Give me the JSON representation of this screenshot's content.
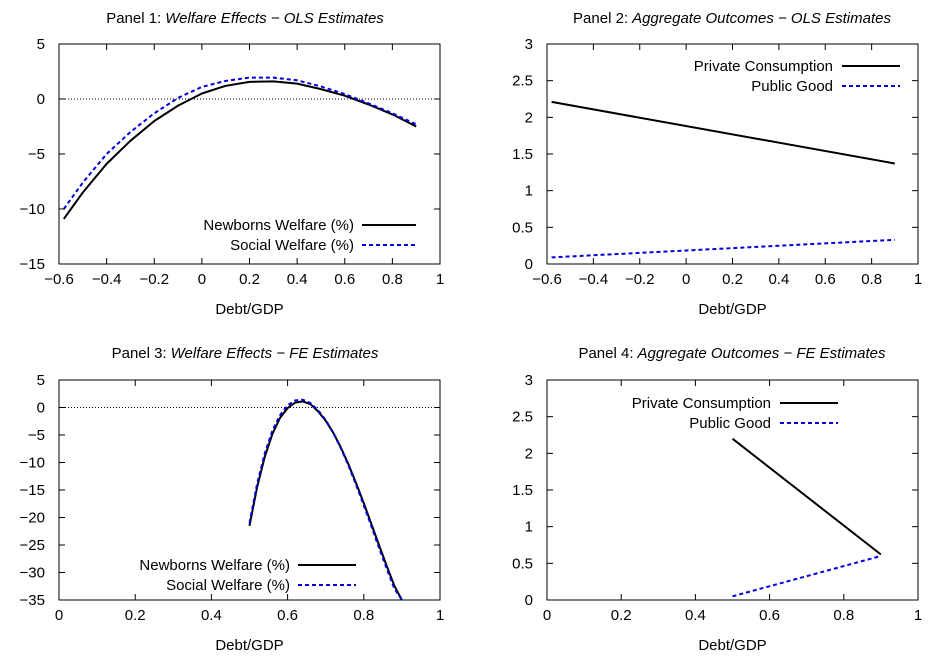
{
  "colors": {
    "series1": "#000000",
    "series2": "#0000dd"
  },
  "chart_data": [
    {
      "type": "line",
      "title_prefix": "Panel 1:",
      "title_italic": "Welfare Effects − OLS Estimates",
      "xlabel": "Debt/GDP",
      "xlim": [
        -0.6,
        1
      ],
      "ylim": [
        -15,
        5
      ],
      "xticks": [
        -0.6,
        -0.4,
        -0.2,
        0,
        0.2,
        0.4,
        0.6,
        0.8,
        1
      ],
      "xtick_labels": [
        "−0.6",
        "−0.4",
        "−0.2",
        "0",
        "0.2",
        "0.4",
        "0.6",
        "0.8",
        "1"
      ],
      "yticks": [
        -15,
        -10,
        -5,
        0,
        5
      ],
      "ytick_labels": [
        "−15",
        "−10",
        "−5",
        "0",
        "5"
      ],
      "zero_line": true,
      "legend": "bottom-right",
      "series": [
        {
          "name": "Newborns Welfare (%)",
          "style": "solid",
          "x": [
            -0.58,
            -0.5,
            -0.4,
            -0.3,
            -0.2,
            -0.1,
            0,
            0.1,
            0.2,
            0.3,
            0.4,
            0.5,
            0.6,
            0.7,
            0.8,
            0.9
          ],
          "y": [
            -10.9,
            -8.5,
            -5.9,
            -3.8,
            -2.0,
            -0.6,
            0.5,
            1.2,
            1.55,
            1.6,
            1.4,
            0.9,
            0.3,
            -0.5,
            -1.4,
            -2.5
          ]
        },
        {
          "name": "Social Welfare (%)",
          "style": "dashed",
          "x": [
            -0.58,
            -0.5,
            -0.4,
            -0.3,
            -0.2,
            -0.1,
            0,
            0.1,
            0.2,
            0.3,
            0.4,
            0.5,
            0.6,
            0.7,
            0.8,
            0.9
          ],
          "y": [
            -10.0,
            -7.6,
            -5.0,
            -3.0,
            -1.3,
            0.1,
            1.1,
            1.65,
            1.95,
            1.95,
            1.7,
            1.15,
            0.45,
            -0.4,
            -1.3,
            -2.3
          ]
        }
      ]
    },
    {
      "type": "line",
      "title_prefix": "Panel 2:",
      "title_italic": "Aggregate Outcomes − OLS Estimates",
      "xlabel": "Debt/GDP",
      "xlim": [
        -0.6,
        1
      ],
      "ylim": [
        0,
        3
      ],
      "xticks": [
        -0.6,
        -0.4,
        -0.2,
        0,
        0.2,
        0.4,
        0.6,
        0.8,
        1
      ],
      "xtick_labels": [
        "−0.6",
        "−0.4",
        "−0.2",
        "0",
        "0.2",
        "0.4",
        "0.6",
        "0.8",
        "1"
      ],
      "yticks": [
        0,
        0.5,
        1,
        1.5,
        2,
        2.5,
        3
      ],
      "ytick_labels": [
        "0",
        "0.5",
        "1",
        "1.5",
        "2",
        "2.5",
        "3"
      ],
      "zero_line": false,
      "legend": "top-right",
      "series": [
        {
          "name": "Private Consumption",
          "style": "solid",
          "x": [
            -0.58,
            0.9
          ],
          "y": [
            2.21,
            1.37
          ]
        },
        {
          "name": "Public Good",
          "style": "dashed",
          "x": [
            -0.58,
            0.9
          ],
          "y": [
            0.09,
            0.33
          ]
        }
      ]
    },
    {
      "type": "line",
      "title_prefix": "Panel 3:",
      "title_italic": "Welfare Effects − FE Estimates",
      "xlabel": "Debt/GDP",
      "xlim": [
        0,
        1
      ],
      "ylim": [
        -35,
        5
      ],
      "xticks": [
        0,
        0.2,
        0.4,
        0.6,
        0.8,
        1
      ],
      "xtick_labels": [
        "0",
        "0.2",
        "0.4",
        "0.6",
        "0.8",
        "1"
      ],
      "yticks": [
        -35,
        -30,
        -25,
        -20,
        -15,
        -10,
        -5,
        0,
        5
      ],
      "ytick_labels": [
        "−35",
        "−30",
        "−25",
        "−20",
        "−15",
        "−10",
        "−5",
        "0",
        "5"
      ],
      "zero_line": true,
      "legend": "bottom-right",
      "series": [
        {
          "name": "Newborns Welfare (%)",
          "style": "solid",
          "x": [
            0.5,
            0.52,
            0.54,
            0.56,
            0.58,
            0.6,
            0.62,
            0.64,
            0.66,
            0.68,
            0.7,
            0.72,
            0.74,
            0.76,
            0.78,
            0.8,
            0.82,
            0.84,
            0.86,
            0.88,
            0.9
          ],
          "y": [
            -21.5,
            -14.5,
            -9.0,
            -4.8,
            -1.9,
            -0.1,
            0.9,
            1.1,
            0.6,
            -0.7,
            -2.4,
            -4.6,
            -7.3,
            -10.4,
            -13.8,
            -17.4,
            -21.2,
            -25.0,
            -28.8,
            -32.4,
            -35.0
          ]
        },
        {
          "name": "Social Welfare (%)",
          "style": "dashed",
          "x": [
            0.5,
            0.52,
            0.54,
            0.56,
            0.58,
            0.6,
            0.62,
            0.64,
            0.66,
            0.68,
            0.7,
            0.72,
            0.74,
            0.76,
            0.78,
            0.8,
            0.82,
            0.84,
            0.86,
            0.88,
            0.9
          ],
          "y": [
            -21.0,
            -13.9,
            -8.4,
            -4.2,
            -1.4,
            0.4,
            1.3,
            1.4,
            0.8,
            -0.5,
            -2.3,
            -4.6,
            -7.4,
            -10.6,
            -14.1,
            -17.8,
            -21.6,
            -25.5,
            -29.3,
            -32.9,
            -35.0
          ]
        }
      ]
    },
    {
      "type": "line",
      "title_prefix": "Panel 4:",
      "title_italic": "Aggregate Outcomes − FE Estimates",
      "xlabel": "Debt/GDP",
      "xlim": [
        0,
        1
      ],
      "ylim": [
        0,
        3
      ],
      "xticks": [
        0,
        0.2,
        0.4,
        0.6,
        0.8,
        1
      ],
      "xtick_labels": [
        "0",
        "0.2",
        "0.4",
        "0.6",
        "0.8",
        "1"
      ],
      "yticks": [
        0,
        0.5,
        1,
        1.5,
        2,
        2.5,
        3
      ],
      "ytick_labels": [
        "0",
        "0.5",
        "1",
        "1.5",
        "2",
        "2.5",
        "3"
      ],
      "zero_line": false,
      "legend": "top-right",
      "series": [
        {
          "name": "Private Consumption",
          "style": "solid",
          "x": [
            0.5,
            0.9
          ],
          "y": [
            2.2,
            0.62
          ]
        },
        {
          "name": "Public Good",
          "style": "dashed",
          "x": [
            0.5,
            0.9
          ],
          "y": [
            0.05,
            0.6
          ]
        }
      ]
    }
  ]
}
